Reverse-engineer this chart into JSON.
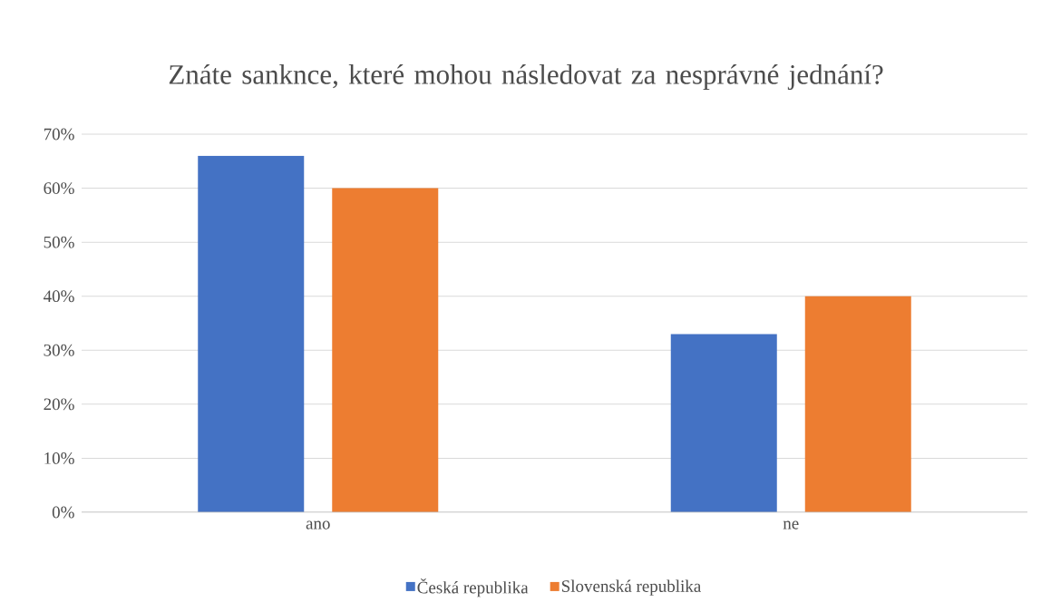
{
  "chart_data": {
    "type": "bar",
    "title": "Znáte sanknce, které mohou následovat za nesprávné jednání?",
    "categories": [
      "ano",
      "ne"
    ],
    "series": [
      {
        "name": "Česká republika",
        "color": "#4472c4",
        "values": [
          66,
          33
        ]
      },
      {
        "name": "Slovenská republika",
        "color": "#ed7d31",
        "values": [
          60,
          40
        ]
      }
    ],
    "ylim": [
      0,
      70
    ],
    "yticks": [
      {
        "value": 0,
        "label": "0%"
      },
      {
        "value": 10,
        "label": "10%"
      },
      {
        "value": 20,
        "label": "20%"
      },
      {
        "value": 30,
        "label": "30%"
      },
      {
        "value": 40,
        "label": "40%"
      },
      {
        "value": 50,
        "label": "50%"
      },
      {
        "value": 60,
        "label": "60%"
      },
      {
        "value": 70,
        "label": "70%"
      }
    ],
    "grid": "y",
    "legend": "bottom"
  }
}
